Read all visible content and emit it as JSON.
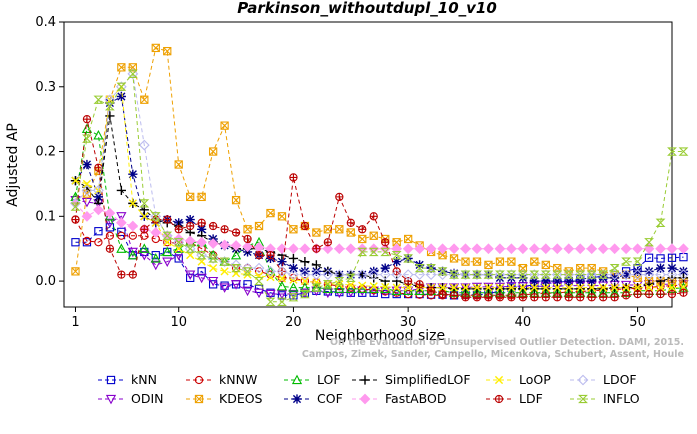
{
  "chart_data": {
    "type": "line",
    "title": "Parkinson_withoutdupl_10_v10",
    "xlabel": "Neighborhood size",
    "ylabel": "Adjusted AP",
    "xlim": [
      0,
      53
    ],
    "ylim": [
      -0.04,
      0.4
    ],
    "xticks": [
      "1",
      "10",
      "20",
      "30",
      "40",
      "50"
    ],
    "yticks": [
      "0.0",
      "0.1",
      "0.2",
      "0.3",
      "0.4"
    ],
    "legend_position": "bottom",
    "credit": [
      "Campos, Zimek, Sander, Campello, Micenkova, Schubert, Assent, Houle",
      "On the Evaluation of Unsupervised Outlier Detection. DAMI, 2015."
    ],
    "k_start": 1,
    "series": [
      {
        "name": "kNN",
        "color": "#0000cc",
        "marker": "square",
        "values": [
          0.06,
          0.06,
          0.077,
          0.083,
          0.076,
          0.04,
          0.045,
          0.04,
          0.045,
          0.035,
          0.005,
          0.015,
          -0.005,
          -0.007,
          -0.005,
          -0.005,
          -0.012,
          -0.018,
          -0.022,
          -0.022,
          -0.018,
          -0.015,
          -0.016,
          -0.017,
          -0.018,
          -0.018,
          -0.018,
          -0.02,
          -0.02,
          -0.02,
          -0.02,
          -0.021,
          -0.021,
          -0.022,
          -0.021,
          -0.021,
          -0.02,
          -0.015,
          -0.01,
          -0.008,
          -0.006,
          -0.004,
          -0.002,
          0.0,
          0.003,
          0.005,
          0.008,
          0.01,
          0.015,
          0.02,
          0.036,
          0.035,
          0.036,
          0.037
        ]
      },
      {
        "name": "ODIN",
        "color": "#8800cc",
        "marker": "triangle-down",
        "values": [
          0.125,
          0.122,
          0.12,
          0.09,
          0.1,
          0.045,
          0.04,
          0.025,
          0.03,
          0.04,
          0.01,
          0.005,
          0.0,
          -0.01,
          -0.005,
          -0.015,
          -0.018,
          -0.02,
          -0.02,
          -0.02,
          -0.018,
          -0.015,
          -0.018,
          -0.018,
          -0.017,
          -0.015,
          -0.015,
          -0.015,
          -0.015,
          -0.015,
          -0.012,
          -0.01,
          -0.01,
          -0.01,
          -0.01,
          -0.009,
          -0.009,
          -0.009,
          -0.008,
          -0.008,
          -0.008,
          -0.008,
          -0.008,
          -0.007,
          -0.007,
          -0.007,
          -0.007,
          -0.006,
          -0.006,
          -0.006,
          -0.005,
          -0.005,
          -0.005,
          -0.005
        ]
      },
      {
        "name": "kNNW",
        "color": "#cc0000",
        "marker": "circle",
        "values": [
          0.095,
          0.062,
          0.06,
          0.07,
          0.07,
          0.07,
          0.07,
          0.065,
          0.06,
          0.058,
          0.06,
          0.05,
          0.04,
          0.03,
          0.02,
          0.02,
          0.015,
          0.01,
          0.005,
          0.005,
          0.0,
          -0.002,
          -0.005,
          -0.008,
          -0.01,
          -0.012,
          -0.014,
          -0.016,
          -0.018,
          -0.02,
          -0.021,
          -0.022,
          -0.022,
          -0.022,
          -0.022,
          -0.022,
          -0.022,
          -0.022,
          -0.022,
          -0.021,
          -0.02,
          -0.019,
          -0.018,
          -0.017,
          -0.016,
          -0.015,
          -0.014,
          -0.013,
          -0.012,
          -0.011,
          -0.01,
          -0.008,
          -0.007,
          -0.006
        ]
      },
      {
        "name": "KDEOS",
        "color": "#eea000",
        "marker": "square-x",
        "values": [
          0.015,
          0.135,
          0.17,
          0.28,
          0.33,
          0.33,
          0.28,
          0.36,
          0.355,
          0.18,
          0.13,
          0.13,
          0.2,
          0.24,
          0.125,
          0.08,
          0.085,
          0.105,
          0.1,
          0.08,
          0.085,
          0.075,
          0.08,
          0.08,
          0.075,
          0.065,
          0.07,
          0.065,
          0.06,
          0.065,
          0.055,
          0.045,
          0.04,
          0.035,
          0.03,
          0.03,
          0.025,
          0.03,
          0.03,
          0.02,
          0.03,
          0.025,
          0.02,
          0.015,
          0.02,
          0.02,
          0.015,
          0.01,
          0.01,
          0.005,
          0.0,
          0.0,
          0.0,
          0.0
        ]
      },
      {
        "name": "LOF",
        "color": "#00bb00",
        "marker": "triangle",
        "values": [
          0.13,
          0.235,
          0.225,
          0.1,
          0.05,
          0.04,
          0.05,
          0.035,
          0.045,
          0.05,
          0.06,
          0.06,
          0.04,
          0.03,
          0.04,
          0.055,
          0.06,
          0.015,
          -0.008,
          -0.01,
          -0.01,
          -0.01,
          -0.012,
          -0.012,
          -0.012,
          -0.012,
          -0.012,
          -0.012,
          -0.015,
          -0.015,
          -0.015,
          -0.015,
          -0.015,
          -0.018,
          -0.018,
          -0.018,
          -0.018,
          -0.018,
          -0.018,
          -0.018,
          -0.018,
          -0.018,
          -0.018,
          -0.018,
          -0.018,
          -0.018,
          -0.018,
          -0.018,
          -0.018,
          -0.015,
          -0.015,
          -0.015,
          -0.012,
          -0.01
        ]
      },
      {
        "name": "COF",
        "color": "#000088",
        "marker": "star",
        "values": [
          0.155,
          0.18,
          0.13,
          0.275,
          0.285,
          0.165,
          0.1,
          0.09,
          0.095,
          0.09,
          0.095,
          0.08,
          0.065,
          0.055,
          0.05,
          0.045,
          0.04,
          0.035,
          0.03,
          0.02,
          0.015,
          0.015,
          0.015,
          0.01,
          0.01,
          0.01,
          0.015,
          0.02,
          0.03,
          0.035,
          0.025,
          0.02,
          0.015,
          0.012,
          0.01,
          0.01,
          0.01,
          0.005,
          0.005,
          0.005,
          0.0,
          0.0,
          0.0,
          0.0,
          0.0,
          0.0,
          0.005,
          0.005,
          0.01,
          0.015,
          0.015,
          0.02,
          0.02,
          0.015
        ]
      },
      {
        "name": "SimplifiedLOF",
        "color": "#000000",
        "marker": "plus",
        "values": [
          0.155,
          0.145,
          0.12,
          0.255,
          0.14,
          0.12,
          0.11,
          0.095,
          0.09,
          0.085,
          0.075,
          0.07,
          0.06,
          0.055,
          0.05,
          0.05,
          0.05,
          0.045,
          0.04,
          0.035,
          0.03,
          0.025,
          0.015,
          0.01,
          0.01,
          0.01,
          0.005,
          0.0,
          0.0,
          -0.005,
          -0.008,
          -0.01,
          -0.01,
          -0.012,
          -0.012,
          -0.012,
          -0.012,
          -0.012,
          -0.012,
          -0.012,
          -0.012,
          -0.012,
          -0.012,
          -0.012,
          -0.012,
          -0.012,
          -0.012,
          -0.01,
          -0.01,
          -0.01,
          -0.005,
          0.0,
          0.005,
          0.005
        ]
      },
      {
        "name": "FastABOD",
        "color": "#ff99ee",
        "marker": "diamond",
        "values": [
          0.12,
          0.1,
          0.11,
          0.105,
          0.09,
          0.085,
          0.08,
          0.075,
          0.07,
          0.065,
          0.062,
          0.06,
          0.058,
          0.056,
          0.055,
          0.053,
          0.052,
          0.05,
          0.05,
          0.05,
          0.05,
          0.05,
          0.05,
          0.05,
          0.05,
          0.05,
          0.05,
          0.05,
          0.05,
          0.05,
          0.05,
          0.05,
          0.05,
          0.05,
          0.05,
          0.05,
          0.05,
          0.05,
          0.05,
          0.05,
          0.05,
          0.05,
          0.05,
          0.05,
          0.05,
          0.05,
          0.05,
          0.05,
          0.05,
          0.05,
          0.05,
          0.05,
          0.05,
          0.05
        ]
      },
      {
        "name": "LoOP",
        "color": "#ffee00",
        "marker": "cross",
        "values": [
          0.155,
          0.15,
          0.14,
          0.28,
          0.3,
          0.12,
          0.1,
          0.09,
          0.06,
          0.05,
          0.04,
          0.03,
          0.02,
          0.015,
          0.012,
          0.01,
          0.008,
          0.006,
          0.004,
          0.002,
          0.0,
          -0.002,
          -0.004,
          -0.005,
          -0.006,
          -0.007,
          -0.008,
          -0.009,
          -0.01,
          -0.01,
          -0.01,
          -0.01,
          -0.01,
          -0.01,
          -0.01,
          -0.01,
          -0.01,
          -0.01,
          -0.01,
          -0.01,
          -0.01,
          -0.01,
          -0.01,
          -0.01,
          -0.01,
          -0.01,
          -0.01,
          -0.01,
          -0.01,
          -0.01,
          -0.01,
          -0.01,
          -0.01,
          -0.01
        ]
      },
      {
        "name": "LDF",
        "color": "#bb0000",
        "marker": "circle-plus",
        "values": [
          0.095,
          0.25,
          0.175,
          0.05,
          0.01,
          0.01,
          0.08,
          0.095,
          0.095,
          0.08,
          0.085,
          0.09,
          0.085,
          0.08,
          0.075,
          0.065,
          0.04,
          0.04,
          0.015,
          0.16,
          0.085,
          0.05,
          0.06,
          0.13,
          0.09,
          0.08,
          0.1,
          0.06,
          0.015,
          0.0,
          -0.005,
          -0.015,
          -0.02,
          -0.022,
          -0.025,
          -0.025,
          -0.025,
          -0.025,
          -0.025,
          -0.025,
          -0.025,
          -0.025,
          -0.025,
          -0.025,
          -0.025,
          -0.025,
          -0.025,
          -0.025,
          -0.022,
          -0.02,
          -0.02,
          -0.02,
          -0.02,
          -0.018
        ]
      },
      {
        "name": "LDOF",
        "color": "#bbbbee",
        "marker": "diamond-open",
        "values": [
          0.12,
          0.14,
          0.14,
          0.28,
          0.3,
          0.32,
          0.21,
          0.1,
          0.07,
          0.06,
          0.05,
          0.04,
          0.035,
          0.03,
          0.025,
          0.02,
          0.02,
          0.015,
          0.015,
          0.01,
          0.01,
          0.01,
          0.01,
          0.01,
          0.01,
          0.01,
          0.01,
          0.01,
          0.01,
          0.01,
          0.01,
          0.01,
          0.01,
          0.01,
          0.01,
          0.01,
          0.01,
          0.01,
          0.01,
          0.01,
          0.01,
          0.01,
          0.01,
          0.01,
          0.01,
          0.01,
          0.01,
          0.01,
          0.01,
          0.01,
          0.01,
          0.01,
          0.01,
          0.01
        ]
      },
      {
        "name": "INFLO",
        "color": "#99cc33",
        "marker": "hourglass",
        "values": [
          0.115,
          0.22,
          0.28,
          0.27,
          0.3,
          0.32,
          0.12,
          0.1,
          0.07,
          0.06,
          0.05,
          0.04,
          0.035,
          0.03,
          0.02,
          0.015,
          0.0,
          -0.032,
          -0.032,
          -0.025,
          -0.02,
          -0.01,
          -0.005,
          0.0,
          0.005,
          0.045,
          0.045,
          0.045,
          0.04,
          0.035,
          0.02,
          0.02,
          0.015,
          0.01,
          0.01,
          0.01,
          0.01,
          0.01,
          0.01,
          0.01,
          0.01,
          0.01,
          0.01,
          0.01,
          0.01,
          0.01,
          0.01,
          0.02,
          0.03,
          0.03,
          0.06,
          0.09,
          0.2,
          0.2
        ]
      }
    ]
  }
}
